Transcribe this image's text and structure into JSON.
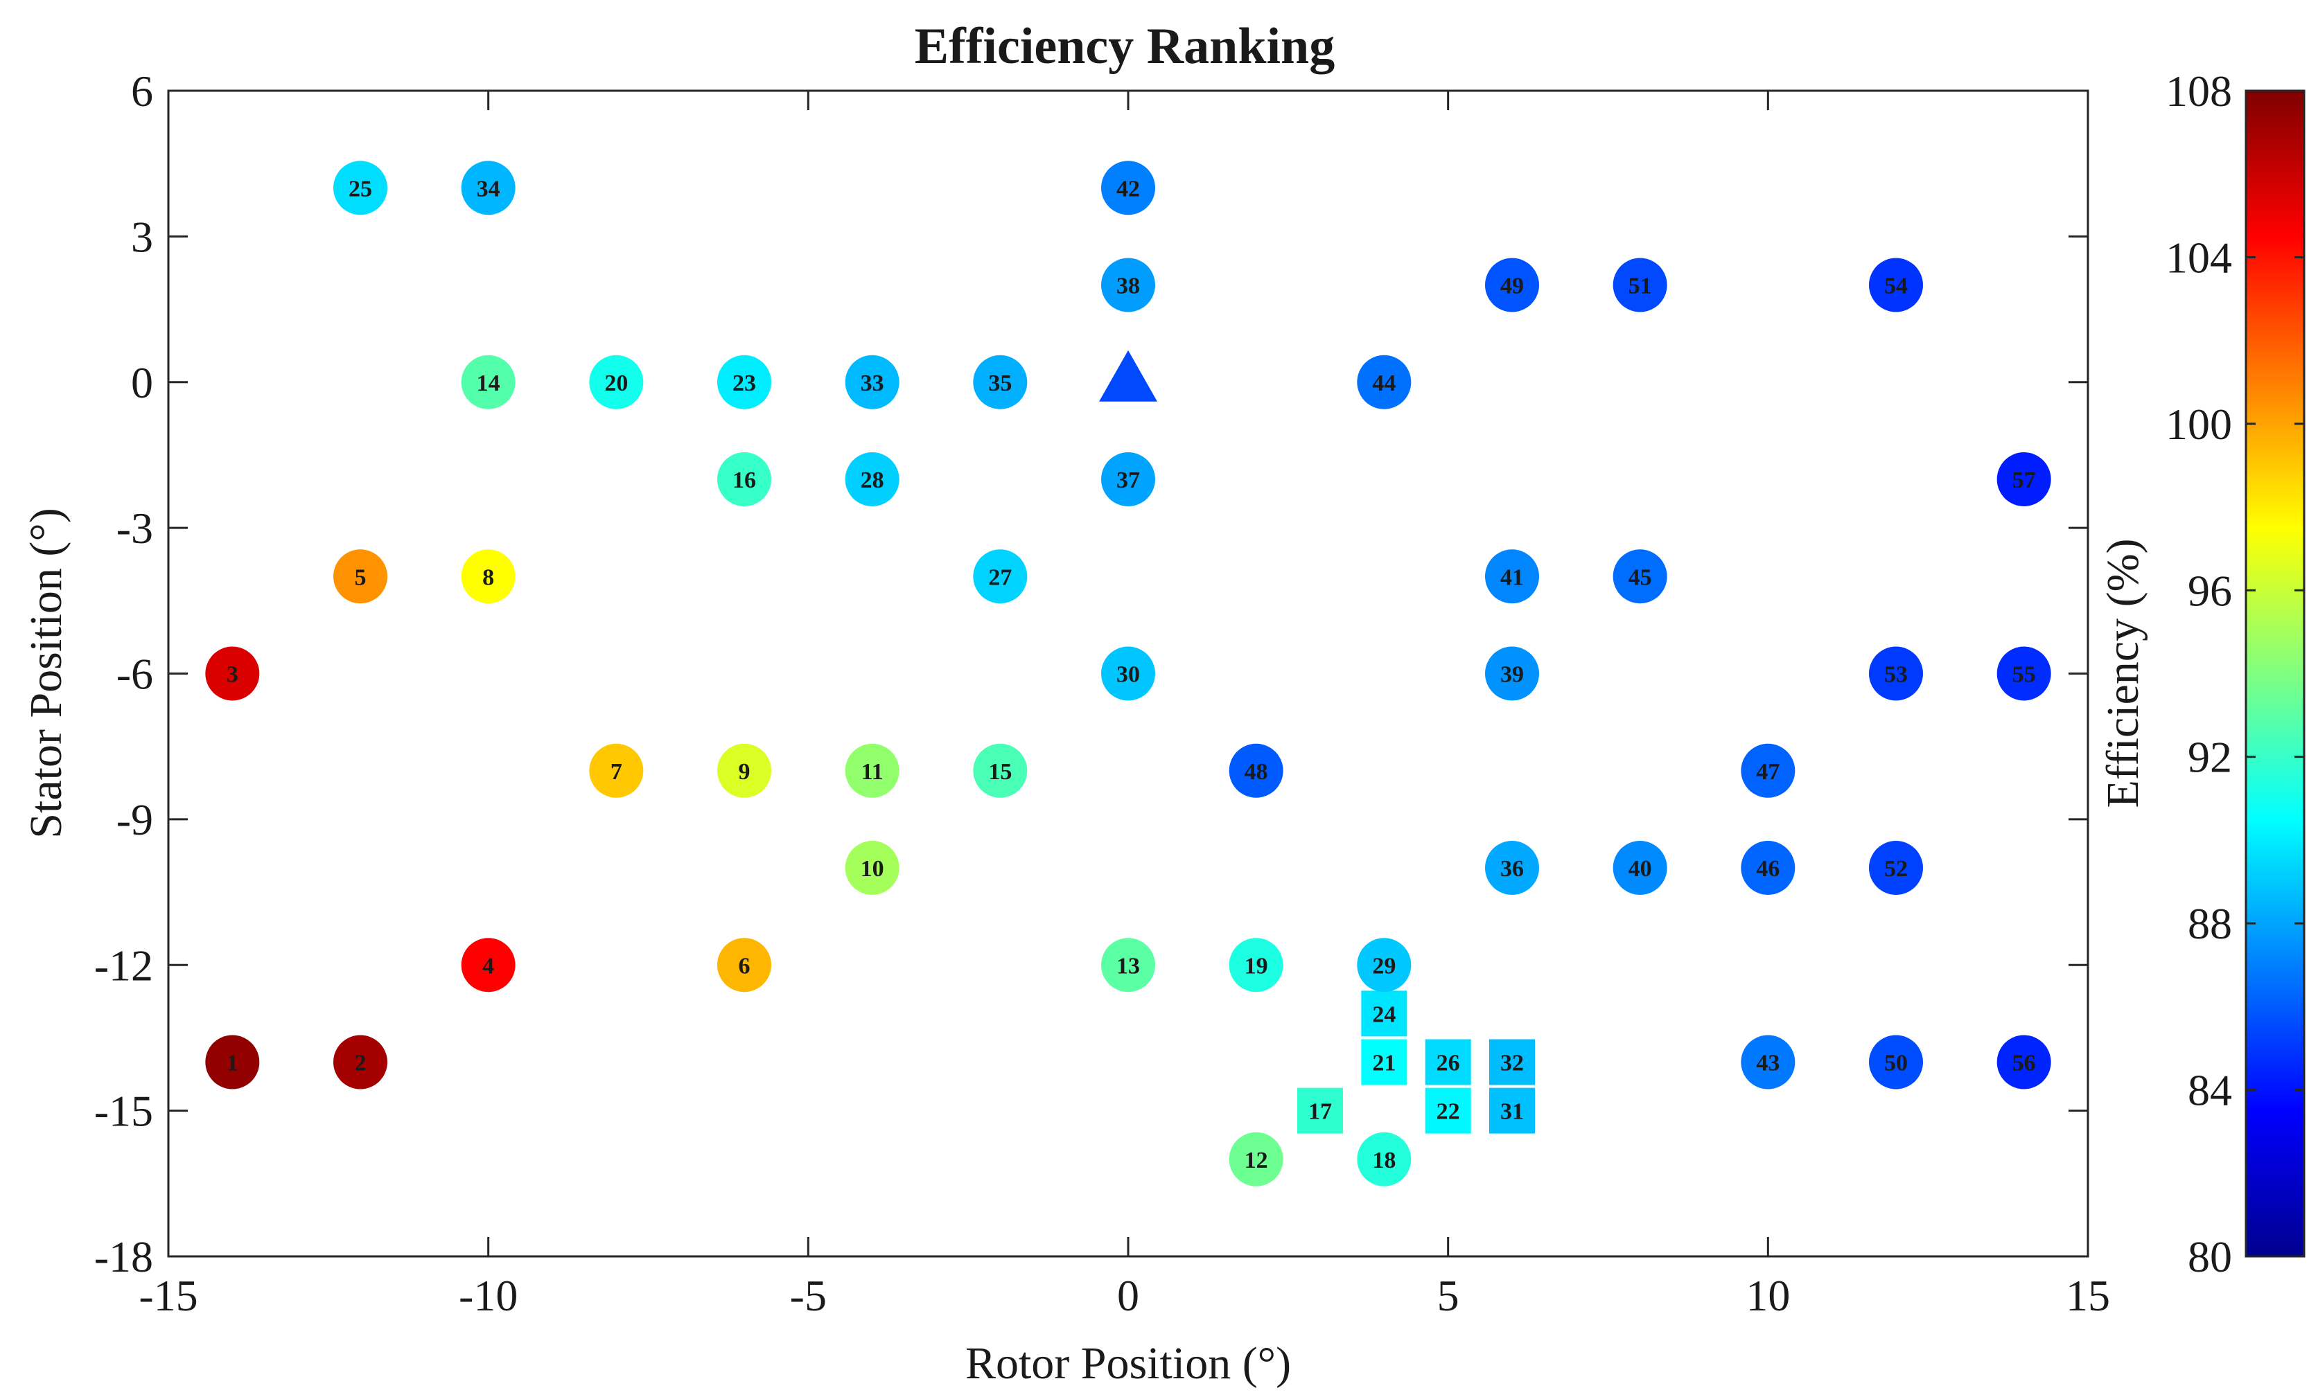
{
  "chart_data": {
    "type": "scatter",
    "title": "Efficiency Ranking",
    "xlabel": "Rotor Position (°)",
    "ylabel": "Stator Position (°)",
    "xlim": [
      -15,
      15
    ],
    "ylim": [
      -18,
      6
    ],
    "xticks": [
      -15,
      -10,
      -5,
      0,
      5,
      10,
      15
    ],
    "yticks": [
      -18,
      -15,
      -12,
      -9,
      -6,
      -3,
      0,
      3,
      6
    ],
    "xtick_labels": [
      "-15",
      "-10",
      "-5",
      "0",
      "5",
      "10",
      "15"
    ],
    "ytick_labels": [
      "-18",
      "-15",
      "-12",
      "-9",
      "-6",
      "-3",
      "0",
      "3",
      "6"
    ],
    "grid": false,
    "colorbar": {
      "label": "Efficiency (%)",
      "colormap": "jet",
      "clim": [
        80,
        108
      ],
      "ticks": [
        80,
        84,
        88,
        92,
        96,
        100,
        104,
        108
      ],
      "tick_labels": [
        "80",
        "84",
        "88",
        "92",
        "96",
        "100",
        "104",
        "108"
      ]
    },
    "reference_marker": {
      "shape": "triangle",
      "x": 0,
      "y": 0,
      "efficiency": 85.5
    },
    "points": [
      {
        "rank": "1",
        "x": -14,
        "y": -14,
        "efficiency": 107.5,
        "shape": "circle"
      },
      {
        "rank": "2",
        "x": -12,
        "y": -14,
        "efficiency": 107.0,
        "shape": "circle"
      },
      {
        "rank": "3",
        "x": -14,
        "y": -6,
        "efficiency": 105.5,
        "shape": "circle"
      },
      {
        "rank": "4",
        "x": -10,
        "y": -12,
        "efficiency": 104.5,
        "shape": "circle"
      },
      {
        "rank": "5",
        "x": -12,
        "y": -4,
        "efficiency": 100.5,
        "shape": "circle"
      },
      {
        "rank": "6",
        "x": -6,
        "y": -12,
        "efficiency": 99.5,
        "shape": "circle"
      },
      {
        "rank": "7",
        "x": -8,
        "y": -8,
        "efficiency": 99.0,
        "shape": "circle"
      },
      {
        "rank": "8",
        "x": -10,
        "y": -4,
        "efficiency": 97.5,
        "shape": "circle"
      },
      {
        "rank": "9",
        "x": -6,
        "y": -8,
        "efficiency": 96.5,
        "shape": "circle"
      },
      {
        "rank": "10",
        "x": -4,
        "y": -10,
        "efficiency": 95.0,
        "shape": "circle"
      },
      {
        "rank": "11",
        "x": -4,
        "y": -8,
        "efficiency": 94.5,
        "shape": "circle"
      },
      {
        "rank": "12",
        "x": 2,
        "y": -16,
        "efficiency": 93.5,
        "shape": "circle"
      },
      {
        "rank": "13",
        "x": 0,
        "y": -12,
        "efficiency": 93.0,
        "shape": "circle"
      },
      {
        "rank": "14",
        "x": -10,
        "y": 0,
        "efficiency": 92.8,
        "shape": "circle"
      },
      {
        "rank": "15",
        "x": -2,
        "y": -8,
        "efficiency": 92.5,
        "shape": "circle"
      },
      {
        "rank": "16",
        "x": -6,
        "y": -2,
        "efficiency": 92.0,
        "shape": "circle"
      },
      {
        "rank": "17",
        "x": 3,
        "y": -15,
        "efficiency": 91.8,
        "shape": "square"
      },
      {
        "rank": "18",
        "x": 4,
        "y": -16,
        "efficiency": 91.5,
        "shape": "circle"
      },
      {
        "rank": "19",
        "x": 2,
        "y": -12,
        "efficiency": 91.3,
        "shape": "circle"
      },
      {
        "rank": "20",
        "x": -8,
        "y": 0,
        "efficiency": 91.0,
        "shape": "circle"
      },
      {
        "rank": "21",
        "x": 4,
        "y": -14,
        "efficiency": 90.5,
        "shape": "square"
      },
      {
        "rank": "22",
        "x": 5,
        "y": -15,
        "efficiency": 90.3,
        "shape": "square"
      },
      {
        "rank": "23",
        "x": -6,
        "y": 0,
        "efficiency": 90.0,
        "shape": "circle"
      },
      {
        "rank": "24",
        "x": 4,
        "y": -13,
        "efficiency": 89.8,
        "shape": "square"
      },
      {
        "rank": "25",
        "x": -12,
        "y": 4,
        "efficiency": 89.6,
        "shape": "circle"
      },
      {
        "rank": "26",
        "x": 5,
        "y": -14,
        "efficiency": 89.5,
        "shape": "square"
      },
      {
        "rank": "27",
        "x": -2,
        "y": -4,
        "efficiency": 89.3,
        "shape": "circle"
      },
      {
        "rank": "28",
        "x": -4,
        "y": -2,
        "efficiency": 89.2,
        "shape": "circle"
      },
      {
        "rank": "29",
        "x": 4,
        "y": -12,
        "efficiency": 89.0,
        "shape": "circle"
      },
      {
        "rank": "30",
        "x": 0,
        "y": -6,
        "efficiency": 88.9,
        "shape": "circle"
      },
      {
        "rank": "31",
        "x": 6,
        "y": -15,
        "efficiency": 88.8,
        "shape": "square"
      },
      {
        "rank": "32",
        "x": 6,
        "y": -14,
        "efficiency": 88.7,
        "shape": "square"
      },
      {
        "rank": "33",
        "x": -4,
        "y": 0,
        "efficiency": 88.6,
        "shape": "circle"
      },
      {
        "rank": "34",
        "x": -10,
        "y": 4,
        "efficiency": 88.5,
        "shape": "circle"
      },
      {
        "rank": "35",
        "x": -2,
        "y": 0,
        "efficiency": 88.3,
        "shape": "circle"
      },
      {
        "rank": "36",
        "x": 6,
        "y": -10,
        "efficiency": 88.1,
        "shape": "circle"
      },
      {
        "rank": "37",
        "x": 0,
        "y": -2,
        "efficiency": 88.0,
        "shape": "circle"
      },
      {
        "rank": "38",
        "x": 0,
        "y": 2,
        "efficiency": 87.8,
        "shape": "circle"
      },
      {
        "rank": "39",
        "x": 6,
        "y": -6,
        "efficiency": 87.5,
        "shape": "circle"
      },
      {
        "rank": "40",
        "x": 8,
        "y": -10,
        "efficiency": 87.3,
        "shape": "circle"
      },
      {
        "rank": "41",
        "x": 6,
        "y": -4,
        "efficiency": 87.2,
        "shape": "circle"
      },
      {
        "rank": "42",
        "x": 0,
        "y": 4,
        "efficiency": 87.0,
        "shape": "circle"
      },
      {
        "rank": "43",
        "x": 10,
        "y": -14,
        "efficiency": 86.8,
        "shape": "circle"
      },
      {
        "rank": "44",
        "x": 4,
        "y": 0,
        "efficiency": 86.6,
        "shape": "circle"
      },
      {
        "rank": "45",
        "x": 8,
        "y": -4,
        "efficiency": 86.5,
        "shape": "circle"
      },
      {
        "rank": "46",
        "x": 10,
        "y": -10,
        "efficiency": 86.3,
        "shape": "circle"
      },
      {
        "rank": "47",
        "x": 10,
        "y": -8,
        "efficiency": 86.2,
        "shape": "circle"
      },
      {
        "rank": "48",
        "x": 2,
        "y": -8,
        "efficiency": 86.0,
        "shape": "circle"
      },
      {
        "rank": "49",
        "x": 6,
        "y": 2,
        "efficiency": 85.8,
        "shape": "circle"
      },
      {
        "rank": "50",
        "x": 12,
        "y": -14,
        "efficiency": 85.6,
        "shape": "circle"
      },
      {
        "rank": "51",
        "x": 8,
        "y": 2,
        "efficiency": 85.5,
        "shape": "circle"
      },
      {
        "rank": "52",
        "x": 12,
        "y": -10,
        "efficiency": 85.3,
        "shape": "circle"
      },
      {
        "rank": "53",
        "x": 12,
        "y": -6,
        "efficiency": 85.1,
        "shape": "circle"
      },
      {
        "rank": "54",
        "x": 12,
        "y": 2,
        "efficiency": 84.9,
        "shape": "circle"
      },
      {
        "rank": "55",
        "x": 14,
        "y": -6,
        "efficiency": 84.7,
        "shape": "circle"
      },
      {
        "rank": "56",
        "x": 14,
        "y": -14,
        "efficiency": 84.5,
        "shape": "circle"
      },
      {
        "rank": "57",
        "x": 14,
        "y": -2,
        "efficiency": 84.3,
        "shape": "circle"
      }
    ]
  }
}
